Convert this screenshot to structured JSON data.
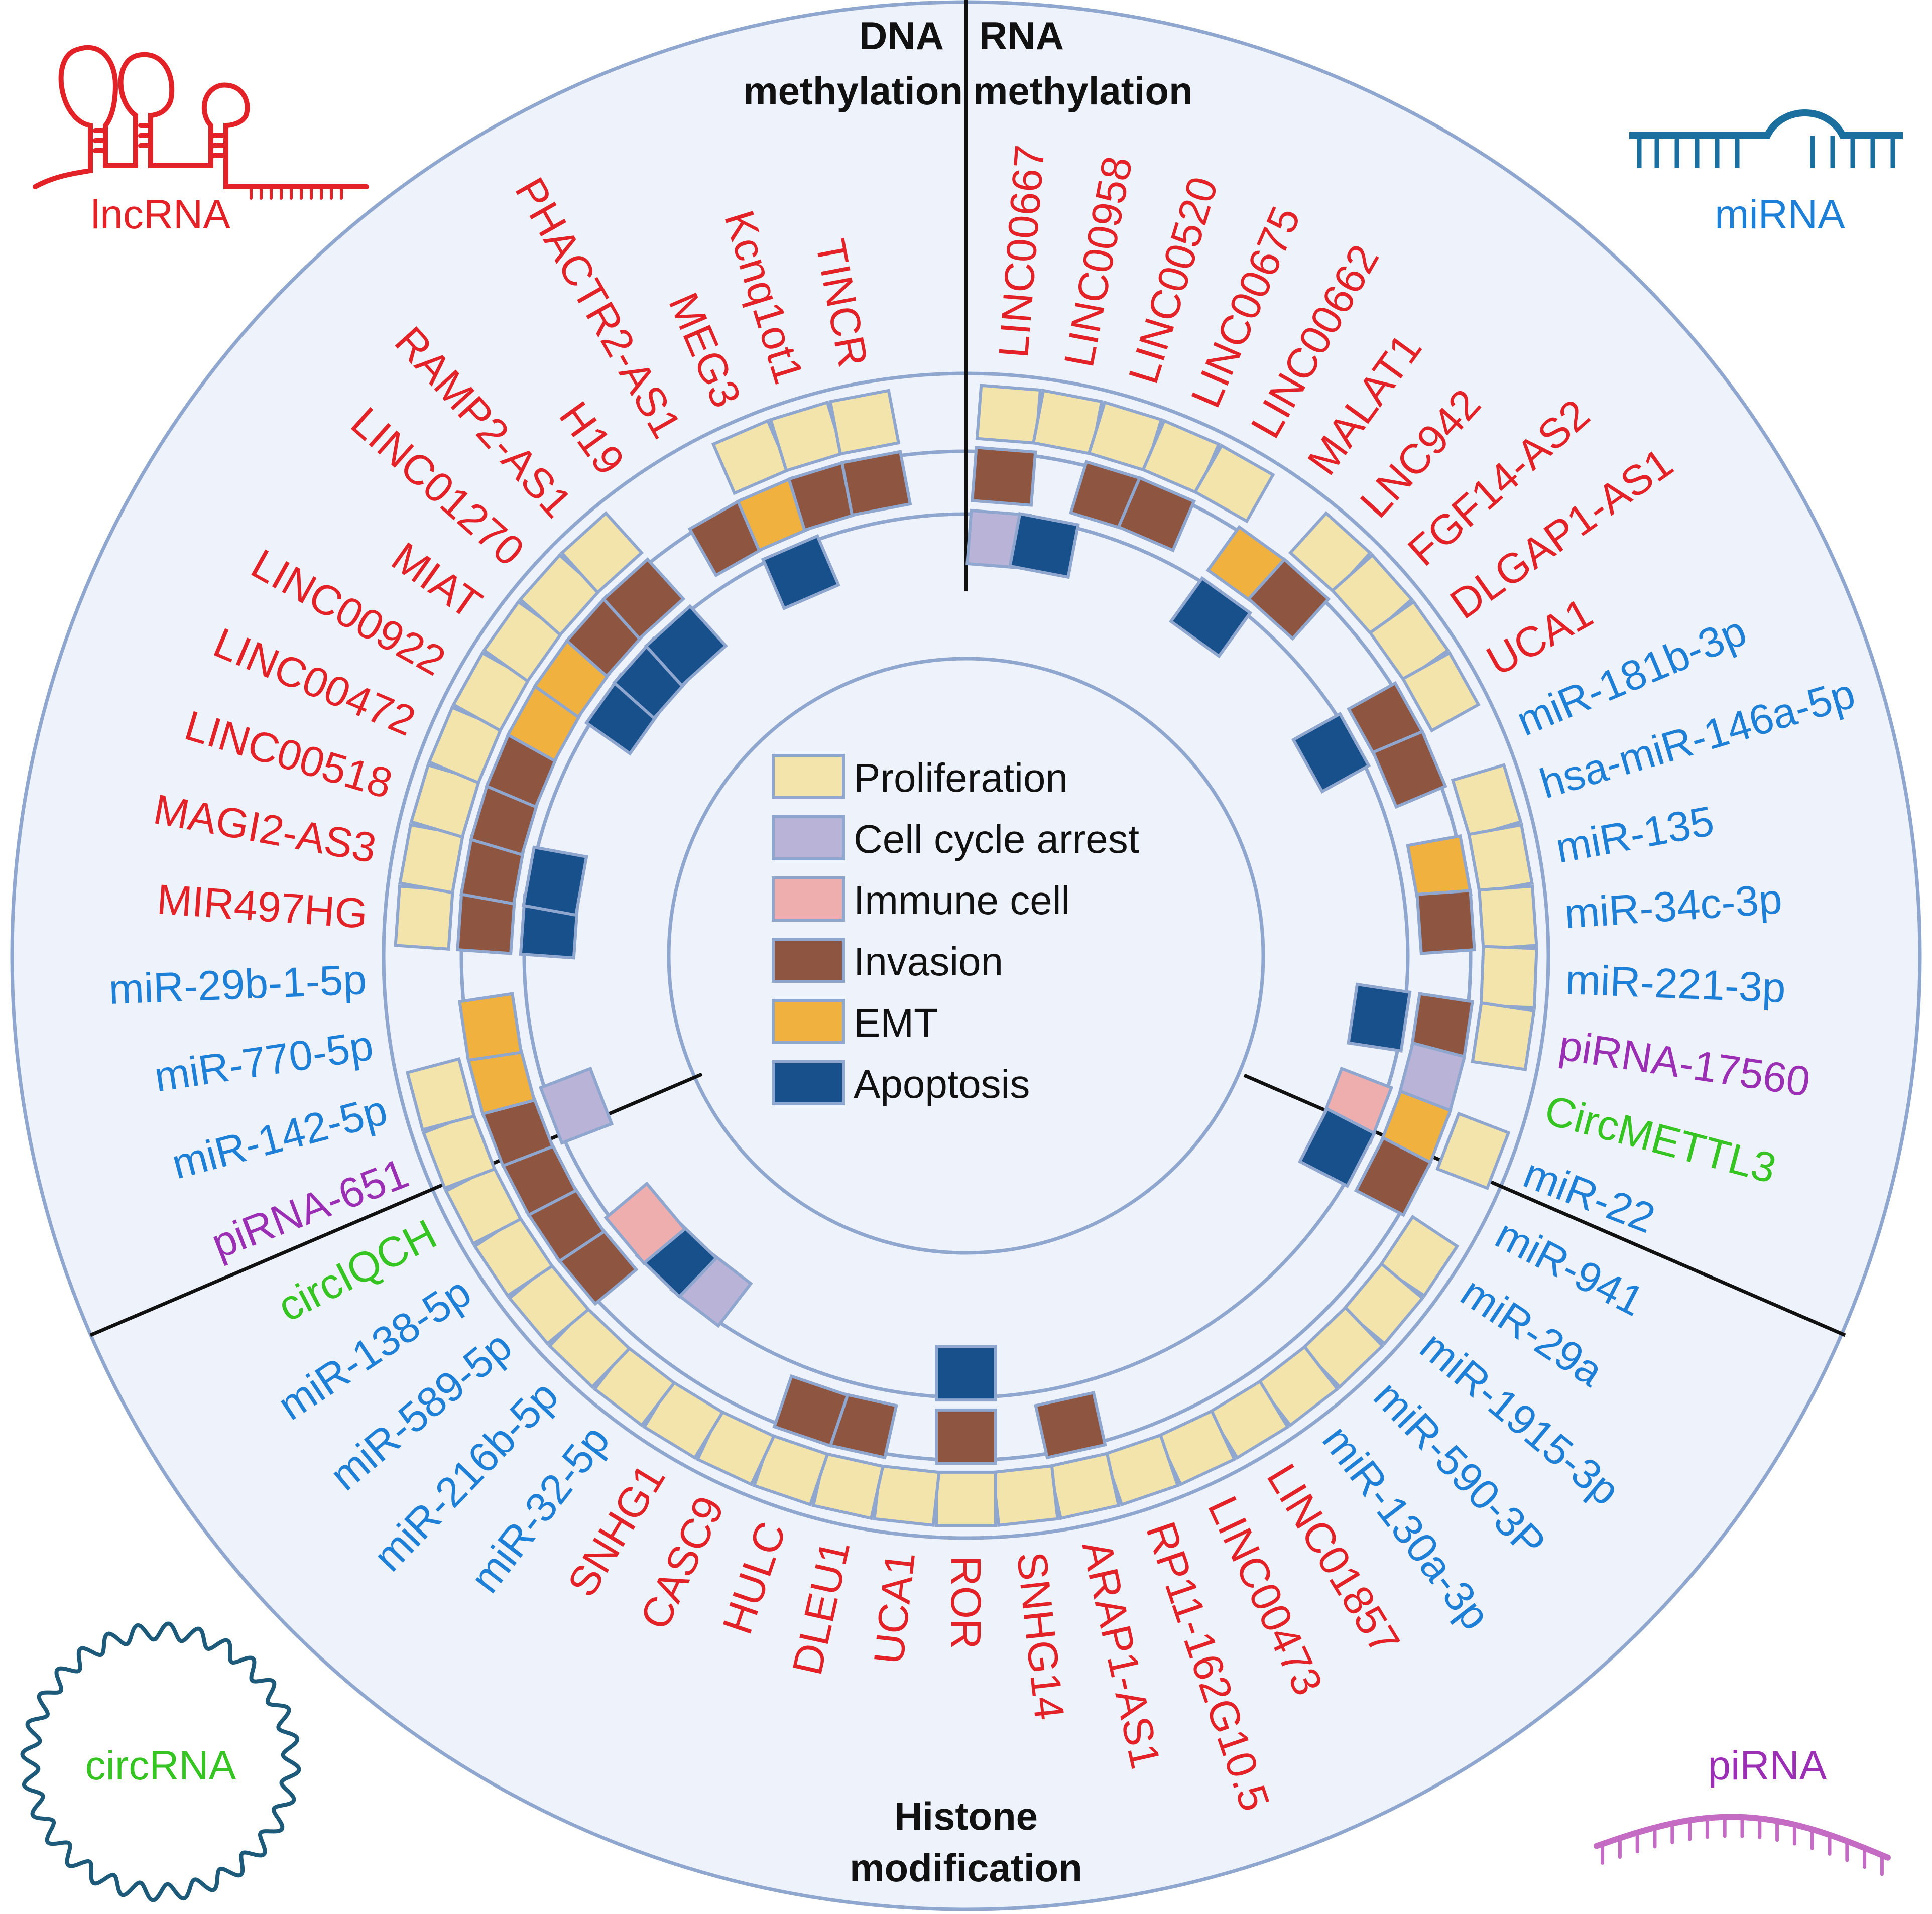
{
  "colors": {
    "background": "#eef3fb",
    "ring": "#8fa6cf",
    "border": "#8fa6cf",
    "lncrna": "#e32228",
    "mirna": "#1e7fd6",
    "pirna": "#9a2fb4",
    "circrna": "#35c421",
    "divider": "#111111",
    "mirna_icon": "#1b6f9e",
    "circrna_icon": "#1d5a7a",
    "pirna_icon": "#c46cc4"
  },
  "sections": {
    "dna": "DNA",
    "dna_line2": "methylation",
    "rna": "RNA",
    "rna_line2": "methylation",
    "histone": "Histone",
    "histone_line2": "modification"
  },
  "corner_icons": {
    "lncrna": "lncRNA",
    "mirna": "miRNA",
    "circrna": "circRNA",
    "pirna": "piRNA"
  },
  "legend": [
    {
      "key": "proliferation",
      "label": "Proliferation",
      "color": "#f3e4ac"
    },
    {
      "key": "cycle",
      "label": "Cell cycle arrest",
      "color": "#b9b3d8"
    },
    {
      "key": "immune",
      "label": "Immune cell",
      "color": "#eeaeae"
    },
    {
      "key": "invasion",
      "label": "Invasion",
      "color": "#8e5640"
    },
    {
      "key": "emt",
      "label": "EMT",
      "color": "#f0b13e"
    },
    {
      "key": "apoptosis",
      "label": "Apoptosis",
      "color": "#17508a"
    }
  ],
  "entries": [
    {
      "label": "LINC00667",
      "type": "lncrna",
      "rings": [
        "proliferation",
        "invasion",
        "cycle"
      ]
    },
    {
      "label": "LINC00958",
      "type": "lncrna",
      "rings": [
        "proliferation",
        null,
        "apoptosis"
      ]
    },
    {
      "label": "LINC00520",
      "type": "lncrna",
      "rings": [
        "proliferation",
        "invasion",
        null
      ]
    },
    {
      "label": "LINC00675",
      "type": "lncrna",
      "rings": [
        "proliferation",
        "invasion",
        null
      ]
    },
    {
      "label": "LINC00662",
      "type": "lncrna",
      "rings": [
        "proliferation",
        null,
        null
      ]
    },
    {
      "label": "MALAT1",
      "type": "lncrna",
      "rings": [
        null,
        "emt",
        "apoptosis"
      ]
    },
    {
      "label": "LNC942",
      "type": "lncrna",
      "rings": [
        "proliferation",
        "invasion",
        null
      ]
    },
    {
      "label": "FGF14-AS2",
      "type": "lncrna",
      "rings": [
        "proliferation",
        null,
        null
      ]
    },
    {
      "label": "DLGAP1-AS1",
      "type": "lncrna",
      "rings": [
        "proliferation",
        null,
        null
      ]
    },
    {
      "label": "UCA1",
      "type": "lncrna",
      "rings": [
        "proliferation",
        "invasion",
        "apoptosis"
      ]
    },
    {
      "label": "miR-181b-3p",
      "type": "mirna",
      "rings": [
        null,
        "invasion",
        null
      ]
    },
    {
      "label": "hsa-miR-146a-5p",
      "type": "mirna",
      "rings": [
        "proliferation",
        null,
        null
      ]
    },
    {
      "label": "miR-135",
      "type": "mirna",
      "rings": [
        "proliferation",
        "emt",
        null
      ]
    },
    {
      "label": "miR-34c-3p",
      "type": "mirna",
      "rings": [
        "proliferation",
        "invasion",
        null
      ]
    },
    {
      "label": "miR-221-3p",
      "type": "mirna",
      "rings": [
        "proliferation",
        null,
        null
      ]
    },
    {
      "label": "piRNA-17560",
      "type": "pirna",
      "rings": [
        "proliferation",
        "invasion",
        "apoptosis"
      ]
    },
    {
      "label": "CircMETTL3",
      "type": "circrna",
      "rings": [
        null,
        "cycle",
        null
      ]
    },
    {
      "label": "miR-22",
      "type": "mirna",
      "rings": [
        "proliferation",
        "emt",
        "immune"
      ]
    },
    {
      "label": "miR-941",
      "type": "mirna",
      "rings": [
        null,
        "invasion",
        "apoptosis"
      ]
    },
    {
      "label": "miR-29a",
      "type": "mirna",
      "rings": [
        "proliferation",
        null,
        null
      ]
    },
    {
      "label": "miR-1915-3p",
      "type": "mirna",
      "rings": [
        "proliferation",
        null,
        null
      ]
    },
    {
      "label": "miR-590-3P",
      "type": "mirna",
      "rings": [
        "proliferation",
        null,
        null
      ]
    },
    {
      "label": "miR-130a-3p",
      "type": "mirna",
      "rings": [
        "proliferation",
        null,
        null
      ]
    },
    {
      "label": "LINC01857",
      "type": "lncrna",
      "rings": [
        "proliferation",
        null,
        null
      ]
    },
    {
      "label": "LINC00473",
      "type": "lncrna",
      "rings": [
        "proliferation",
        null,
        null
      ]
    },
    {
      "label": "RP11-162G10.5",
      "type": "lncrna",
      "rings": [
        "proliferation",
        null,
        null
      ]
    },
    {
      "label": "ARAP1-AS1",
      "type": "lncrna",
      "rings": [
        "proliferation",
        "invasion",
        null
      ]
    },
    {
      "label": "SNHG14",
      "type": "lncrna",
      "rings": [
        "proliferation",
        null,
        null
      ]
    },
    {
      "label": "ROR",
      "type": "lncrna",
      "rings": [
        "proliferation",
        "invasion",
        "apoptosis"
      ]
    },
    {
      "label": "UCA1",
      "type": "lncrna",
      "rings": [
        "proliferation",
        null,
        null
      ]
    },
    {
      "label": "DLEU1",
      "type": "lncrna",
      "rings": [
        "proliferation",
        "invasion",
        null
      ]
    },
    {
      "label": "HULC",
      "type": "lncrna",
      "rings": [
        "proliferation",
        "invasion",
        null
      ]
    },
    {
      "label": "CASC9",
      "type": "lncrna",
      "rings": [
        "proliferation",
        null,
        null
      ]
    },
    {
      "label": "SNHG1",
      "type": "lncrna",
      "rings": [
        "proliferation",
        null,
        null
      ]
    },
    {
      "label": "miR-32-5p",
      "type": "mirna",
      "rings": [
        "proliferation",
        null,
        "cycle"
      ]
    },
    {
      "label": "miR-216b-5p",
      "type": "mirna",
      "rings": [
        "proliferation",
        null,
        "apoptosis"
      ]
    },
    {
      "label": "miR-589-5p",
      "type": "mirna",
      "rings": [
        "proliferation",
        "invasion",
        "immune"
      ]
    },
    {
      "label": "miR-138-5p",
      "type": "mirna",
      "rings": [
        "proliferation",
        "invasion",
        null
      ]
    },
    {
      "label": "circIQCH",
      "type": "circrna",
      "rings": [
        "proliferation",
        "invasion",
        null
      ]
    },
    {
      "label": "piRNA-651",
      "type": "pirna",
      "rings": [
        "proliferation",
        "invasion",
        "cycle"
      ]
    },
    {
      "label": "miR-142-5p",
      "type": "mirna",
      "rings": [
        "proliferation",
        "emt",
        null
      ]
    },
    {
      "label": "miR-770-5p",
      "type": "mirna",
      "rings": [
        null,
        "emt",
        null
      ]
    },
    {
      "label": "miR-29b-1-5p",
      "type": "mirna",
      "rings": [
        null,
        null,
        null
      ]
    },
    {
      "label": "MIR497HG",
      "type": "lncrna",
      "rings": [
        "proliferation",
        "invasion",
        "apoptosis"
      ]
    },
    {
      "label": "MAGI2-AS3",
      "type": "lncrna",
      "rings": [
        "proliferation",
        "invasion",
        "apoptosis"
      ]
    },
    {
      "label": "LINC00518",
      "type": "lncrna",
      "rings": [
        "proliferation",
        "invasion",
        null
      ]
    },
    {
      "label": "LINC00472",
      "type": "lncrna",
      "rings": [
        "proliferation",
        "invasion",
        null
      ]
    },
    {
      "label": "LINC00922",
      "type": "lncrna",
      "rings": [
        "proliferation",
        "emt",
        null
      ]
    },
    {
      "label": "MIAT",
      "type": "lncrna",
      "rings": [
        "proliferation",
        "emt",
        "apoptosis"
      ]
    },
    {
      "label": "LINC01270",
      "type": "lncrna",
      "rings": [
        "proliferation",
        "invasion",
        "apoptosis"
      ]
    },
    {
      "label": "RAMP2-AS1",
      "type": "lncrna",
      "rings": [
        "proliferation",
        "invasion",
        "apoptosis"
      ]
    },
    {
      "label": "H19",
      "type": "lncrna",
      "rings": [
        null,
        null,
        null
      ]
    },
    {
      "label": "PHACTR2-AS1",
      "type": "lncrna",
      "rings": [
        null,
        "invasion",
        null
      ]
    },
    {
      "label": "MEG3",
      "type": "lncrna",
      "rings": [
        "proliferation",
        "emt",
        "apoptosis"
      ]
    },
    {
      "label": "Kcnq1ot1",
      "type": "lncrna",
      "rings": [
        "proliferation",
        "invasion",
        null
      ]
    },
    {
      "label": "TINCR",
      "type": "lncrna",
      "rings": [
        "proliferation",
        "invasion",
        null
      ]
    }
  ]
}
